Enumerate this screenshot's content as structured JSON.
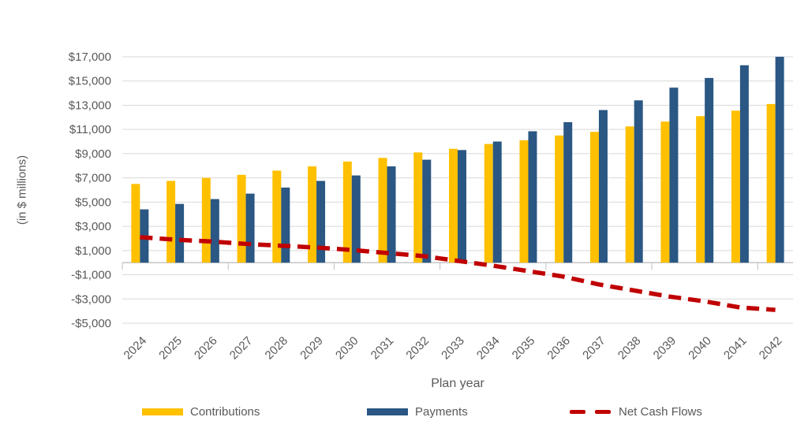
{
  "chart_data": {
    "type": "bar",
    "title": "",
    "xlabel": "Plan year",
    "ylabel": "(in $ millions)",
    "categories": [
      "2024",
      "2025",
      "2026",
      "2027",
      "2028",
      "2029",
      "2030",
      "2031",
      "2032",
      "2033",
      "2034",
      "2035",
      "2036",
      "2037",
      "2038",
      "2039",
      "2040",
      "2041",
      "2042"
    ],
    "series": [
      {
        "name": "Contributions",
        "type": "bar",
        "color": "#FFC000",
        "values": [
          6500,
          6750,
          7000,
          7250,
          7600,
          7950,
          8350,
          8650,
          9100,
          9400,
          9800,
          10100,
          10500,
          10800,
          11250,
          11650,
          12100,
          12550,
          13100
        ]
      },
      {
        "name": "Payments",
        "type": "bar",
        "color": "#2A5783",
        "values": [
          4400,
          4850,
          5250,
          5700,
          6200,
          6750,
          7200,
          7950,
          8500,
          9300,
          10000,
          10850,
          11600,
          12600,
          13400,
          14450,
          15250,
          16300,
          17000
        ]
      },
      {
        "name": "Net Cash Flows",
        "type": "line",
        "line_style": "dashed",
        "color": "#C00000",
        "values": [
          2100,
          1900,
          1750,
          1550,
          1400,
          1250,
          1050,
          800,
          550,
          150,
          -250,
          -700,
          -1150,
          -1800,
          -2300,
          -2800,
          -3200,
          -3700,
          -3900
        ]
      }
    ],
    "ylim": [
      -5000,
      17000
    ],
    "yticks": [
      17000,
      15000,
      13000,
      11000,
      9000,
      7000,
      5000,
      3000,
      1000,
      -1000,
      -3000,
      -5000
    ],
    "ytick_labels": [
      "$17,000",
      "$15,000",
      "$13,000",
      "$11,000",
      "$9,000",
      "$7,000",
      "$5,000",
      "$3,000",
      "$1,000",
      "-$1,000",
      "-$3,000",
      "-$5,000"
    ],
    "grid": true,
    "legend_position": "bottom",
    "text_color": "#595959",
    "grid_color": "#D9D9D9",
    "axis_color": "#BFBFBF"
  }
}
